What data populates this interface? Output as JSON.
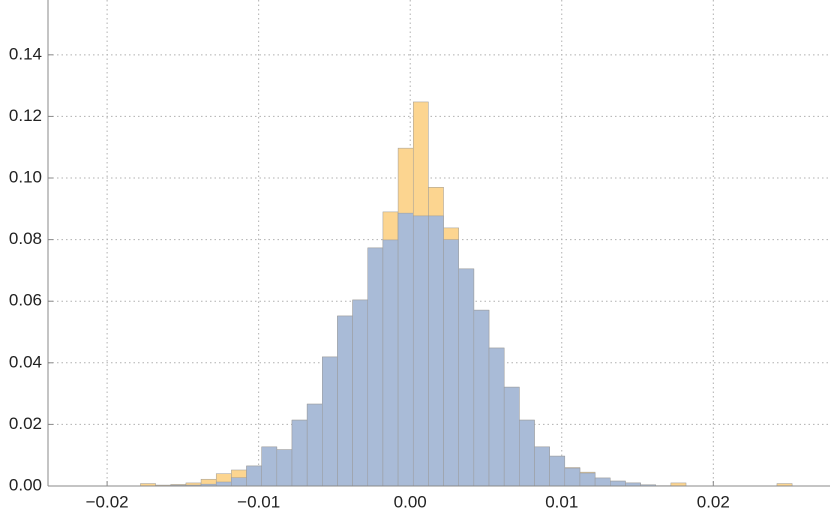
{
  "chart_data": {
    "type": "histogram",
    "bins": [
      -0.0228,
      -0.0218,
      -0.0208,
      -0.0198,
      -0.0188,
      -0.0178,
      -0.0168,
      -0.0158,
      -0.0148,
      -0.0138,
      -0.0128,
      -0.0118,
      -0.0108,
      -0.0098,
      -0.0088,
      -0.0078,
      -0.0068,
      -0.0058,
      -0.0048,
      -0.0038,
      -0.0028,
      -0.0018,
      -0.0008,
      0.0002,
      0.0012,
      0.0022,
      0.0032,
      0.0042,
      0.0052,
      0.0062,
      0.0072,
      0.0082,
      0.0092,
      0.0102,
      0.0112,
      0.0122,
      0.0132,
      0.0142,
      0.0152,
      0.0162,
      0.0172,
      0.0182,
      0.0192,
      0.0202,
      0.0212,
      0.0222,
      0.0232,
      0.0242,
      0.0252
    ],
    "series": [
      {
        "color": "#fcd590",
        "values": [
          0,
          0,
          0,
          0,
          0,
          0.0008,
          0.0003,
          0.0005,
          0.001,
          0.0022,
          0.004,
          0.0052,
          0.0065,
          0.0127,
          0.0118,
          0.0214,
          0.0266,
          0.0419,
          0.0552,
          0.0604,
          0.0773,
          0.089,
          0.1097,
          0.1247,
          0.097,
          0.0838,
          0.0705,
          0.0571,
          0.0448,
          0.0321,
          0.0214,
          0.0127,
          0.0097,
          0.006,
          0.0045,
          0.0026,
          0.0016,
          0.001,
          0.0004,
          0.0001,
          0.001,
          0,
          0,
          0,
          0,
          0,
          0,
          0.0008
        ]
      },
      {
        "color": "#a9bbd7",
        "values": [
          0,
          0,
          0,
          0,
          0,
          0,
          0,
          0.0003,
          0.0003,
          0.0006,
          0.0013,
          0.0027,
          0.0065,
          0.0127,
          0.0118,
          0.0214,
          0.0266,
          0.0419,
          0.0552,
          0.0604,
          0.0773,
          0.0799,
          0.0886,
          0.0877,
          0.0877,
          0.08,
          0.0705,
          0.0571,
          0.0448,
          0.0321,
          0.0214,
          0.0127,
          0.0097,
          0.0058,
          0.0042,
          0.0026,
          0.0016,
          0.001,
          0.0004,
          0.0001,
          0,
          0,
          0,
          0,
          0,
          0,
          0,
          0
        ]
      }
    ],
    "xlim": [
      -0.0239,
      0.0277
    ],
    "ylim": [
      0,
      0.1578
    ],
    "xticks": [
      {
        "value": -0.02,
        "label": "−0.02"
      },
      {
        "value": -0.01,
        "label": "−0.01"
      },
      {
        "value": 0,
        "label": "0.00"
      },
      {
        "value": 0.01,
        "label": "0.01"
      },
      {
        "value": 0.02,
        "label": "0.02"
      }
    ],
    "yticks": [
      {
        "value": 0,
        "label": "0.00"
      },
      {
        "value": 0.02,
        "label": "0.02"
      },
      {
        "value": 0.04,
        "label": "0.04"
      },
      {
        "value": 0.06,
        "label": "0.06"
      },
      {
        "value": 0.08,
        "label": "0.08"
      },
      {
        "value": 0.1,
        "label": "0.10"
      },
      {
        "value": 0.12,
        "label": "0.12"
      },
      {
        "value": 0.14,
        "label": "0.14"
      }
    ],
    "grid": true
  }
}
